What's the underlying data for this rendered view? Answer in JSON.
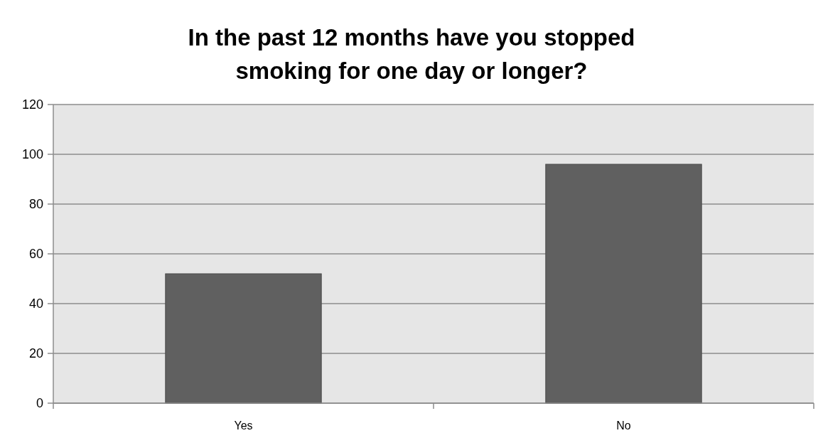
{
  "chart_data": {
    "type": "bar",
    "title": "In the past 12 months have you stopped smoking for one day or longer?",
    "categories": [
      "Yes",
      "No"
    ],
    "values": [
      52,
      96
    ],
    "color": "#606060",
    "ylim": [
      0,
      120
    ],
    "yticks": [
      0,
      20,
      40,
      60,
      80,
      100,
      120
    ],
    "grid": "y"
  }
}
